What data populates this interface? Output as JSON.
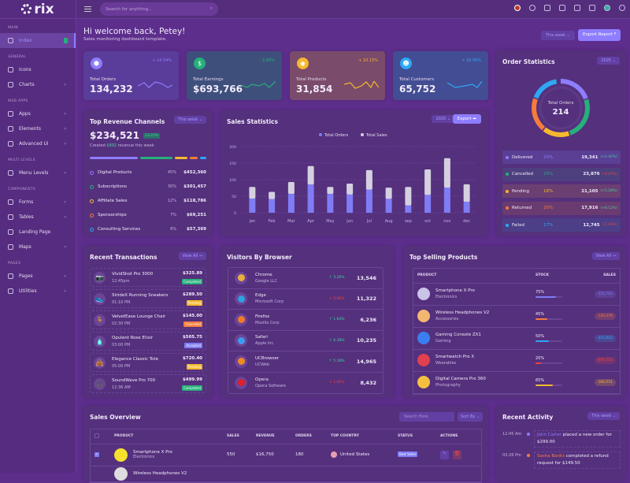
{
  "brand": "rix",
  "sidebar": {
    "sections": [
      {
        "title": "MAIN",
        "items": [
          {
            "label": "Index",
            "active": true,
            "badge": "5"
          }
        ]
      },
      {
        "title": "GENERAL",
        "items": [
          {
            "label": "Icons"
          },
          {
            "label": "Charts",
            "chevron": true
          }
        ]
      },
      {
        "title": "WEB APPS",
        "items": [
          {
            "label": "Apps",
            "chevron": true
          },
          {
            "label": "Elements",
            "chevron": true
          },
          {
            "label": "Advanced Ui",
            "chevron": true
          }
        ]
      },
      {
        "title": "MULTI LEVELS",
        "items": [
          {
            "label": "Menu Levels",
            "chevron": true
          }
        ]
      },
      {
        "title": "COMPONENTS",
        "items": [
          {
            "label": "Forms",
            "chevron": true
          },
          {
            "label": "Tables",
            "chevron": true
          },
          {
            "label": "Landing Page"
          },
          {
            "label": "Maps",
            "chevron": true
          }
        ]
      },
      {
        "title": "PAGES",
        "items": [
          {
            "label": "Pages",
            "chevron": true
          },
          {
            "label": "Utilities",
            "chevron": true
          }
        ]
      }
    ]
  },
  "header": {
    "search_placeholder": "Search for anything..."
  },
  "welcome": {
    "title": "Hi welcome back, Petey!",
    "subtitle": "Sales monitoring dashboard template.",
    "period": "This week",
    "export": "Export Report"
  },
  "stats": [
    {
      "label": "Total Orders",
      "value": "134,232",
      "change": "+ 14.54%",
      "color": "#8e7dff",
      "icon": "cube-icon",
      "glyph": "⬢"
    },
    {
      "label": "Total Earnings",
      "value": "$693,766",
      "change": "- 5.85%",
      "color": "#26b07a",
      "icon": "dollar-icon",
      "glyph": "$"
    },
    {
      "label": "Total Products",
      "value": "31,854",
      "change": "+ 10.15%",
      "color": "#f5b82e",
      "icon": "box-icon",
      "glyph": "◉"
    },
    {
      "label": "Total Customers",
      "value": "65,752",
      "change": "+ 16.45%",
      "color": "#2ea8f5",
      "icon": "users-icon",
      "glyph": "☻"
    }
  ],
  "revenue": {
    "title": "Top Revenue Channels",
    "period": "This week",
    "total": "$234,521",
    "badge": "13.25%",
    "note_prefix": "Created",
    "note_amount": "$892",
    "note_suffix": "revenue this week",
    "channels": [
      {
        "name": "Digital Products",
        "pct": "45%",
        "amount": "$452,360",
        "color": "#8e7dff"
      },
      {
        "name": "Subscriptions",
        "pct": "30%",
        "amount": "$301,457",
        "color": "#26b07a"
      },
      {
        "name": "Affiliate Sales",
        "pct": "12%",
        "amount": "$118,786",
        "color": "#f5b82e"
      },
      {
        "name": "Sponsorships",
        "pct": "7%",
        "amount": "$69,251",
        "color": "#f57c3a"
      },
      {
        "name": "Consulting Services",
        "pct": "6%",
        "amount": "$57,369",
        "color": "#2ea8f5"
      }
    ]
  },
  "sales_stats": {
    "title": "Sales Statistics",
    "year": "2025",
    "export": "Export"
  },
  "chart_data": {
    "type": "bar",
    "stacked": true,
    "categories": [
      "Jan",
      "Feb",
      "Mar",
      "Apr",
      "May",
      "Jun",
      "Jul",
      "Aug",
      "sep",
      "oct",
      "nov",
      "dec"
    ],
    "series": [
      {
        "name": "Total Orders",
        "color": "#7f7cf5",
        "values": [
          43,
          41,
          57,
          85,
          57,
          55,
          70,
          42,
          22,
          54,
          76,
          33
        ]
      },
      {
        "name": "Total Sales",
        "color": "#d4d0e0",
        "values": [
          35,
          22,
          36,
          56,
          21,
          33,
          59,
          34,
          56,
          77,
          89,
          53
        ]
      }
    ],
    "yticks": [
      0,
      50,
      100,
      150,
      200
    ],
    "ylim": [
      0,
      200
    ],
    "legend": "top-center"
  },
  "order_stats": {
    "title": "Order Statistics",
    "year": "2025",
    "center_label": "Total Orders",
    "center_value": "214",
    "rows": [
      {
        "name": "Delivered",
        "pct": "20%",
        "value": "19,341",
        "change": "(+2.42%)",
        "color": "#8e7dff",
        "up": true
      },
      {
        "name": "Cancelled",
        "pct": "25%",
        "value": "23,876",
        "change": "(-4.07%)",
        "color": "#26b07a",
        "up": false
      },
      {
        "name": "Pending",
        "pct": "16%",
        "value": "21,105",
        "change": "(+5.28%)",
        "color": "#f5b82e",
        "up": true
      },
      {
        "name": "Returned",
        "pct": "20%",
        "value": "17,916",
        "change": "(+8.12%)",
        "color": "#f57c3a",
        "up": true
      },
      {
        "name": "Failed",
        "pct": "17%",
        "value": "12,745",
        "change": "(-1.94%)",
        "color": "#2ea8f5",
        "up": false
      }
    ],
    "donut": [
      20,
      25,
      16,
      20,
      17
    ]
  },
  "transactions": {
    "title": "Recent Transactions",
    "view_all": "View All",
    "items": [
      {
        "name": "VividShot Pro 3000",
        "time": "12:45pm",
        "amount": "$325.89",
        "status": "Completed",
        "color": "#26b07a",
        "glyph": "📷"
      },
      {
        "name": "StrideX Running Sneakers",
        "time": "01:10 PM",
        "amount": "$289.50",
        "status": "Pending",
        "color": "#f5b82e",
        "glyph": "👟"
      },
      {
        "name": "VelvetEase Lounge Chair",
        "time": "02:30 PM",
        "amount": "$145.00",
        "status": "Cancelled",
        "color": "#f57c3a",
        "glyph": "🪑"
      },
      {
        "name": "Opulent Rose Elixir",
        "time": "03:00 PM",
        "amount": "$505.75",
        "status": "Accepted",
        "color": "#7f7cf5",
        "glyph": "🧴"
      },
      {
        "name": "Elegance Classic Tote",
        "time": "05:00 PM",
        "amount": "$720.40",
        "status": "Pending",
        "color": "#f5b82e",
        "glyph": "👜"
      },
      {
        "name": "SoundWave Pro 700",
        "time": "12:36 AM",
        "amount": "$499.99",
        "status": "Completed",
        "color": "#26b07a",
        "glyph": "🎧"
      }
    ]
  },
  "browsers": {
    "title": "Visitors By Browser",
    "items": [
      {
        "name": "Chrome",
        "org": "Google LLC",
        "change": "↑ 3.26%",
        "up": true,
        "value": "13,546",
        "color": "#e8b03b"
      },
      {
        "name": "Edge",
        "org": "Microsoft Corp",
        "change": "↓ 0.96%",
        "up": false,
        "value": "11,322",
        "color": "#2fa0e0"
      },
      {
        "name": "Firefox",
        "org": "Mozilla Corp",
        "change": "↑ 1.64%",
        "up": true,
        "value": "6,236",
        "color": "#f07a28"
      },
      {
        "name": "Safari",
        "org": "Apple Inc",
        "change": "↑ 6.38%",
        "up": true,
        "value": "10,235",
        "color": "#3b9cf0"
      },
      {
        "name": "UCBrowser",
        "org": "UCWeb",
        "change": "↑ 5.18%",
        "up": true,
        "value": "14,965",
        "color": "#f08a20"
      },
      {
        "name": "Opera",
        "org": "Opera Software",
        "change": "↓ 1.65%",
        "up": false,
        "value": "8,432",
        "color": "#e0202a"
      }
    ]
  },
  "top_products": {
    "title": "Top Selling Products",
    "view_all": "View All",
    "headers": [
      "PRODUCT",
      "STOCK",
      "SALES"
    ],
    "items": [
      {
        "name": "Smartphone X Pro",
        "cat": "Electronics",
        "stock": 75,
        "stock_label": "75%",
        "sales": "550,762",
        "color": "#7f7cf5",
        "thumb": "#c9c3e8"
      },
      {
        "name": "Wireless Headphones V2",
        "cat": "Accessories",
        "stock": 45,
        "stock_label": "45%",
        "sales": "120,376",
        "color": "#f57c3a",
        "thumb": "#f2b872"
      },
      {
        "name": "Gaming Console ZX1",
        "cat": "Gaming",
        "stock": 50,
        "stock_label": "50%",
        "sales": "450,902",
        "color": "#2ea8f5",
        "thumb": "#3b7ef0"
      },
      {
        "name": "Smartwatch Pro X",
        "cat": "Wearables",
        "stock": 20,
        "stock_label": "20%",
        "sales": "800,754",
        "color": "#f0443a",
        "thumb": "#e0404f"
      },
      {
        "name": "Digital Camera Pro 360",
        "cat": "Photography",
        "stock": 65,
        "stock_label": "65%",
        "sales": "180,551",
        "color": "#f5b82e",
        "thumb": "#f5c040"
      }
    ]
  },
  "sales_overview": {
    "title": "Sales Overview",
    "search_placeholder": "Search Here",
    "sort": "Sort By",
    "headers": [
      "PRODUCT",
      "SALES",
      "REVENUE",
      "ORDERS",
      "TOP COUNTRY",
      "STATUS",
      "ACTIONS"
    ],
    "rows": [
      {
        "name": "Smartphone X Pro",
        "cat": "Electronics",
        "sales": "550",
        "revenue": "$16,750",
        "orders": "180",
        "country": "United States",
        "status": "Best Seller"
      },
      {
        "name": "Wireless Headphones V2",
        "cat": "",
        "sales": "",
        "revenue": "",
        "orders": "",
        "country": "",
        "status": ""
      }
    ]
  },
  "activity": {
    "title": "Recent Activity",
    "period": "This week",
    "items": [
      {
        "time": "12:45 Am",
        "who": "John Carter",
        "text": " placed a new order for $299.00",
        "color": "#8e7dff"
      },
      {
        "time": "03:26 Pm",
        "who": "Sasha Banks",
        "text": " completed a refund request for $149.50",
        "color": "#f57c3a"
      }
    ]
  }
}
